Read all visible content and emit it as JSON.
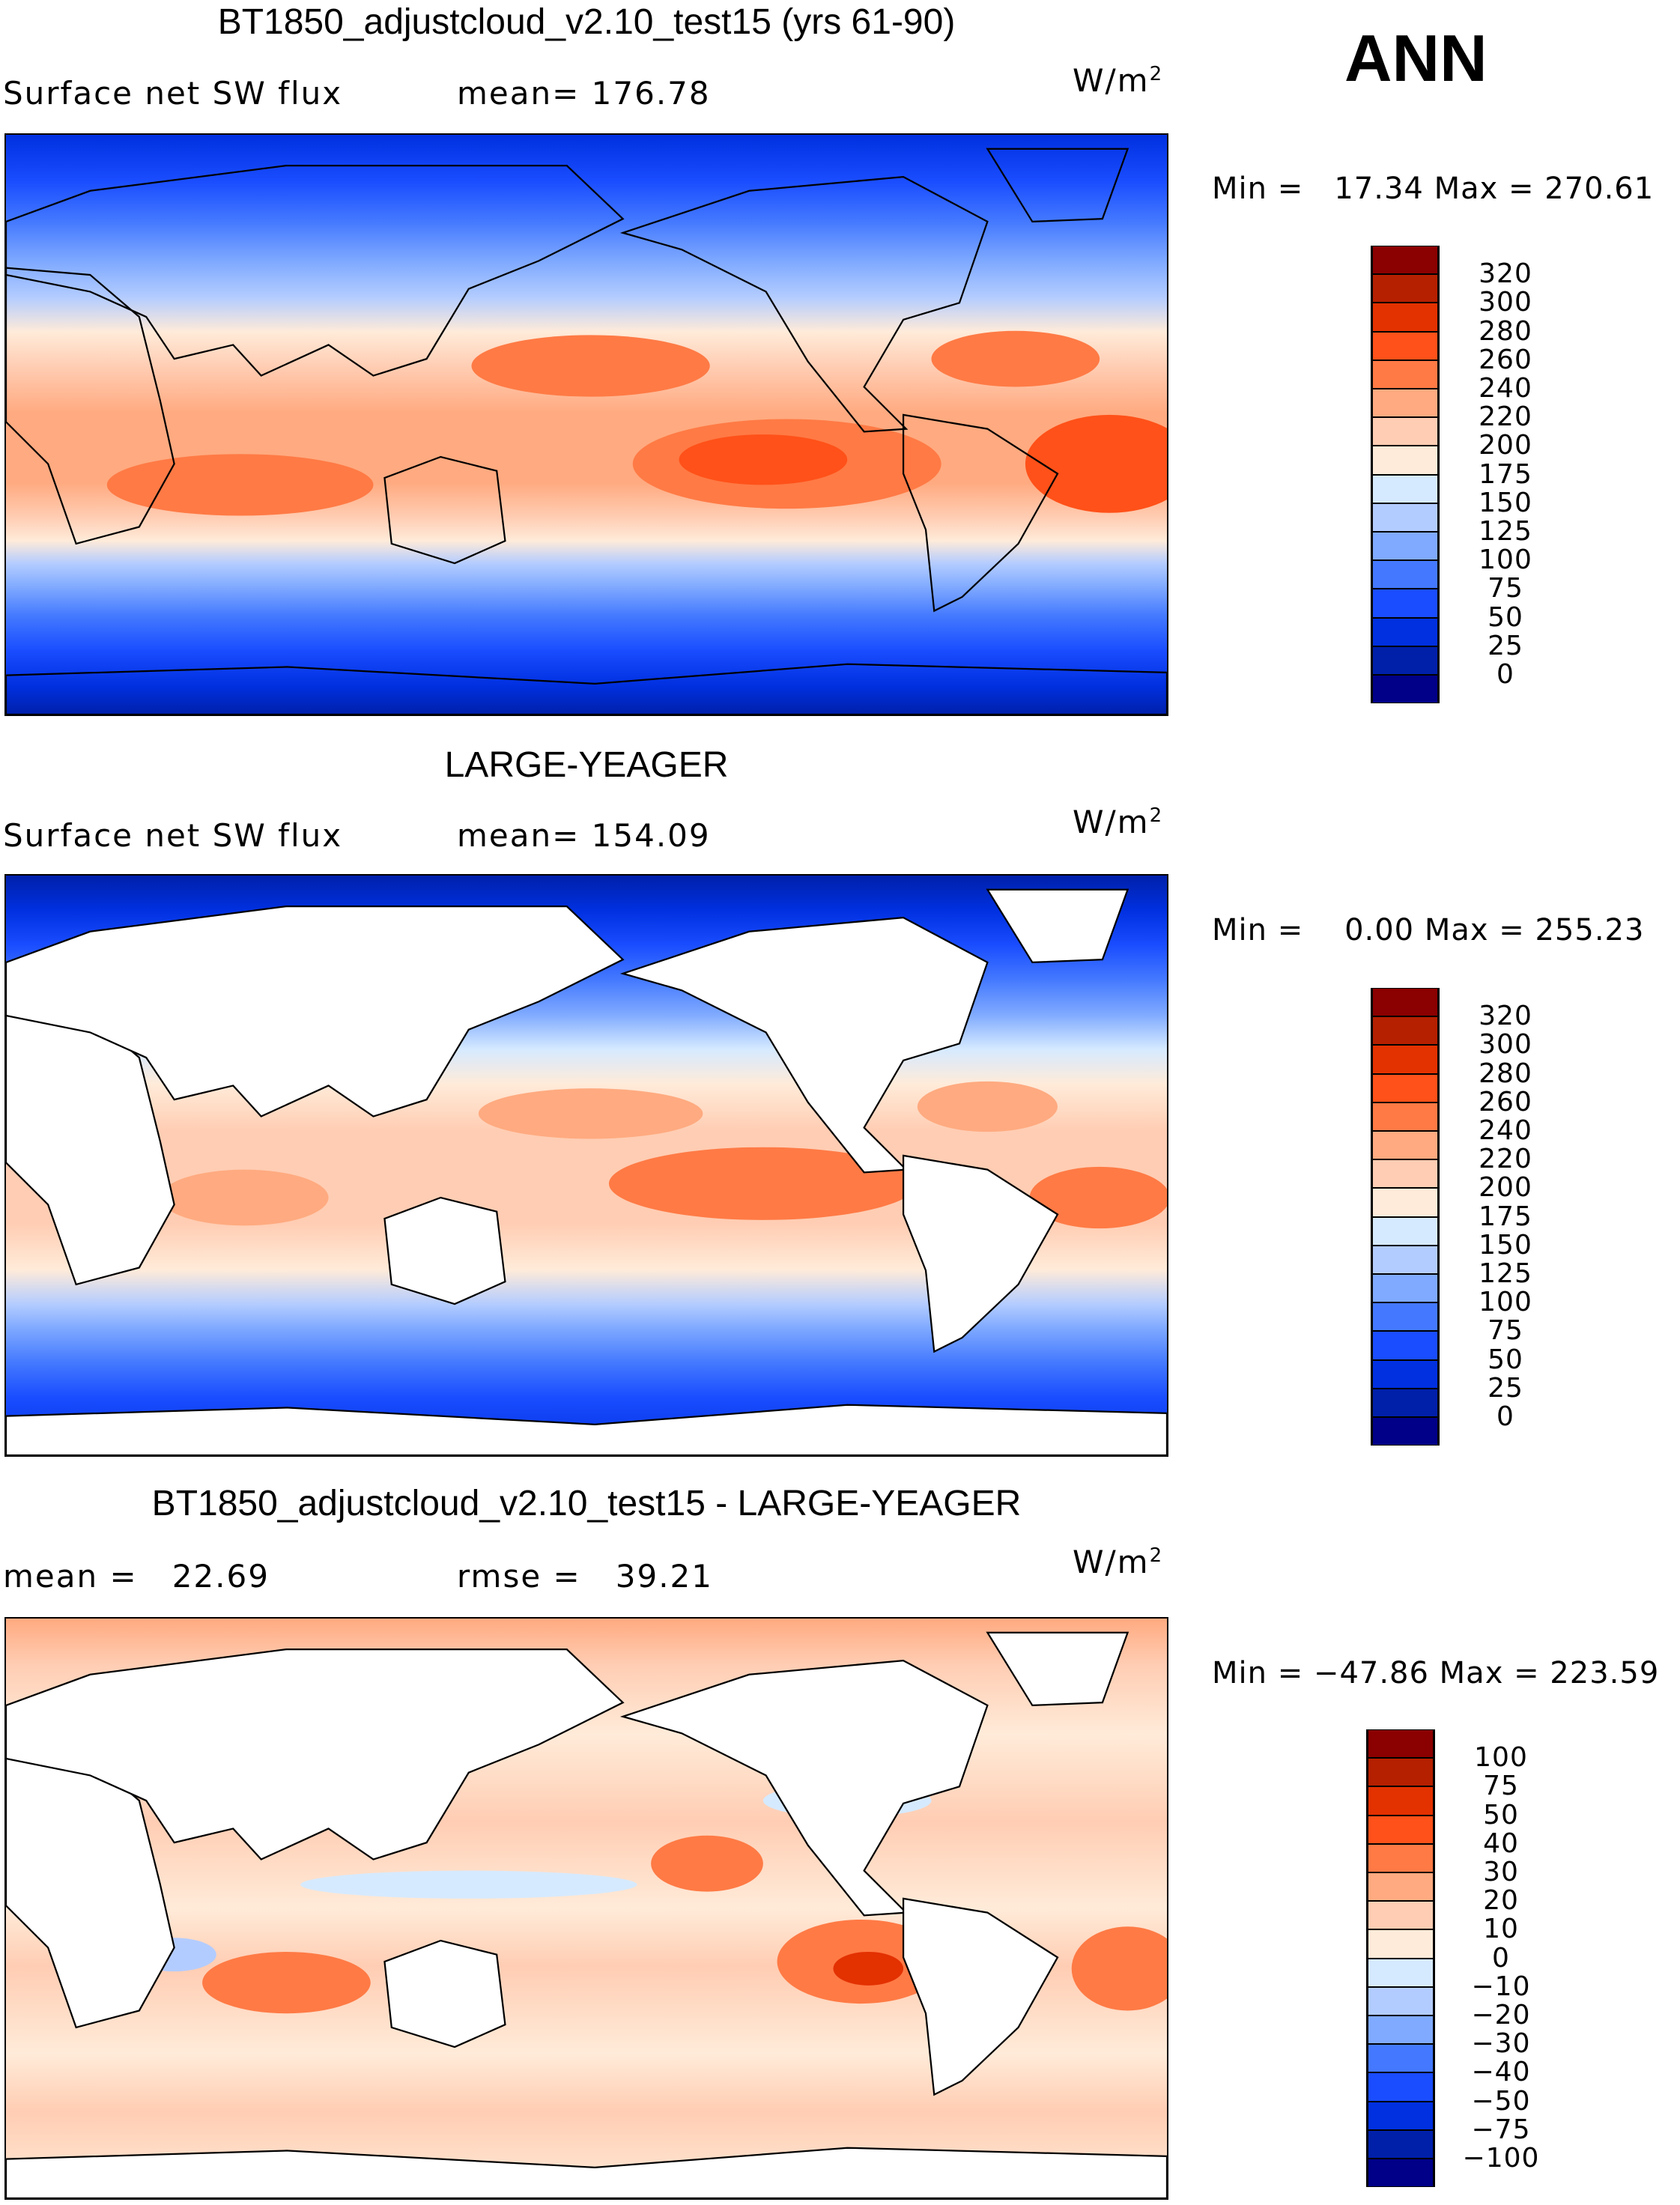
{
  "season": "ANN",
  "colors": [
    "#000088",
    "#0020aa",
    "#0030e0",
    "#1a4dff",
    "#4479ff",
    "#80aaff",
    "#b3ccff",
    "#d6eaff",
    "#ffebd9",
    "#ffcdb3",
    "#ffaa80",
    "#ff7a45",
    "#ff5119",
    "#e33100",
    "#b52000",
    "#8b0000"
  ],
  "chart_data": [
    {
      "type": "heatmap",
      "title": "BT1850_adjustcloud_v2.10_test15 (yrs 61-90)",
      "variable": "Surface net SW flux",
      "stat": "mean= 176.78",
      "units": "W/m",
      "units_sup": "2",
      "minmax": "Min =   17.34 Max = 270.61",
      "min": 17.34,
      "max": 270.61,
      "mean": 176.78,
      "levels": [
        "0",
        "25",
        "50",
        "75",
        "100",
        "125",
        "150",
        "175",
        "200",
        "220",
        "240",
        "260",
        "280",
        "300",
        "320"
      ]
    },
    {
      "type": "heatmap",
      "title": "LARGE-YEAGER",
      "variable": "Surface net SW flux",
      "stat": "mean= 154.09",
      "units": "W/m",
      "units_sup": "2",
      "minmax": "Min =    0.00 Max = 255.23",
      "min": 0.0,
      "max": 255.23,
      "mean": 154.09,
      "levels": [
        "0",
        "25",
        "50",
        "75",
        "100",
        "125",
        "150",
        "175",
        "200",
        "220",
        "240",
        "260",
        "280",
        "300",
        "320"
      ]
    },
    {
      "type": "heatmap",
      "title": "BT1850_adjustcloud_v2.10_test15 - LARGE-YEAGER",
      "variable": "mean =   22.69",
      "stat": "rmse =   39.21",
      "units": "W/m",
      "units_sup": "2",
      "minmax": "Min = −47.86 Max = 223.59",
      "min": -47.86,
      "max": 223.59,
      "mean": 22.69,
      "rmse": 39.21,
      "levels": [
        "−100",
        "−75",
        "−50",
        "−40",
        "−30",
        "−20",
        "−10",
        "0",
        "10",
        "20",
        "30",
        "40",
        "50",
        "75",
        "100"
      ]
    }
  ]
}
